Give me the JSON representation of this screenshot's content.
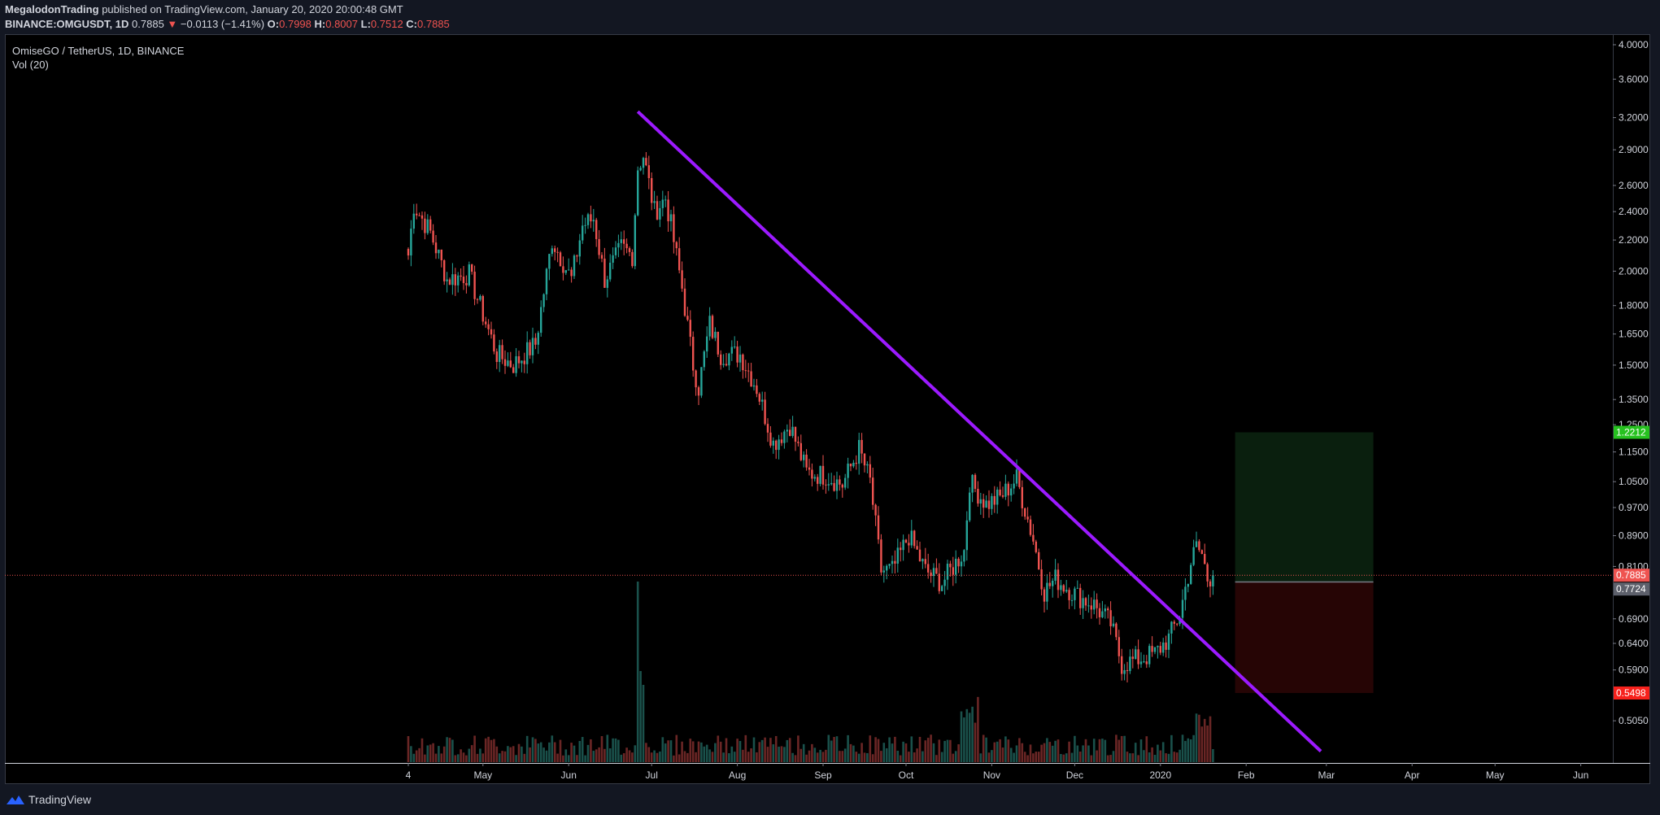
{
  "header": {
    "author": "MegalodonTrading",
    "published_text": "published on TradingView.com, January 20, 2020 20:00:48 GMT",
    "symbol": "BINANCE:OMGUSDT, 1D",
    "last": "0.7885",
    "change_arrow": "▼",
    "change": "−0.0113 (−1.41%)",
    "open_label": "O:",
    "open": "0.7998",
    "high_label": "H:",
    "high": "0.8007",
    "low_label": "L:",
    "low": "0.7512",
    "close_label": "C:",
    "close": "0.7885"
  },
  "legend": {
    "title": "OmiseGO / TetherUS, 1D, BINANCE",
    "indicator": "Vol (20)"
  },
  "footer": {
    "brand": "TradingView",
    "logo_icon": "tradingview-logo-icon"
  },
  "colors": {
    "up": "#26a69a",
    "down": "#ef5350",
    "trendline": "#9c1aff",
    "target": "#089981",
    "stop": "#f23645",
    "entry": "#787b86",
    "target_label": "#26c11f",
    "stop_label": "#f7211c"
  },
  "chart_data": {
    "type": "candlestick",
    "scale": "log",
    "ylim": [
      0.47,
      4.05
    ],
    "y_ticks": [
      "4.0000",
      "3.6000",
      "3.2000",
      "2.9000",
      "2.6000",
      "2.4000",
      "2.2000",
      "2.0000",
      "1.8000",
      "1.6500",
      "1.5000",
      "1.3500",
      "1.2500",
      "1.1500",
      "1.0500",
      "0.9700",
      "0.8900",
      "0.8100",
      "0.6900",
      "0.6400",
      "0.5900",
      "0.5050"
    ],
    "x_ticks": [
      "4",
      "May",
      "Jun",
      "Jul",
      "Aug",
      "Sep",
      "Oct",
      "Nov",
      "Dec",
      "2020",
      "Feb",
      "Mar",
      "Apr",
      "May",
      "Jun"
    ],
    "price_labels": [
      {
        "label": "1.2212",
        "value": 1.2212,
        "kind": "target"
      },
      {
        "label": "0.7885",
        "value": 0.7885,
        "kind": "last"
      },
      {
        "label": "0.7724",
        "value": 0.7724,
        "kind": "entry"
      },
      {
        "label": "0.5498",
        "value": 0.5498,
        "kind": "stop"
      }
    ],
    "last_price": 0.7885,
    "trendline": {
      "start_date": "2019-06-26",
      "start_price": 3.26,
      "end_date": "2020-02-28",
      "end_price": 0.46
    },
    "position": {
      "type": "long",
      "start_date": "2020-01-28",
      "end_date": "2020-03-18",
      "entry": 0.7724,
      "target": 1.2212,
      "stop": 0.5498
    },
    "ohlc_anchors": [
      [
        "2019-04-04",
        2.1
      ],
      [
        "2019-04-06",
        2.45
      ],
      [
        "2019-04-12",
        2.25
      ],
      [
        "2019-04-18",
        1.95
      ],
      [
        "2019-04-26",
        1.98
      ],
      [
        "2019-05-06",
        1.55
      ],
      [
        "2019-05-12",
        1.5
      ],
      [
        "2019-05-20",
        1.6
      ],
      [
        "2019-05-26",
        2.2
      ],
      [
        "2019-06-02",
        1.95
      ],
      [
        "2019-06-06",
        2.3
      ],
      [
        "2019-06-10",
        2.35
      ],
      [
        "2019-06-14",
        1.95
      ],
      [
        "2019-06-20",
        2.15
      ],
      [
        "2019-06-24",
        2.1
      ],
      [
        "2019-06-26",
        2.75
      ],
      [
        "2019-06-28",
        2.85
      ],
      [
        "2019-07-02",
        2.4
      ],
      [
        "2019-07-06",
        2.5
      ],
      [
        "2019-07-08",
        2.3
      ],
      [
        "2019-07-12",
        1.9
      ],
      [
        "2019-07-16",
        1.5
      ],
      [
        "2019-07-18",
        1.4
      ],
      [
        "2019-07-22",
        1.7
      ],
      [
        "2019-07-26",
        1.55
      ],
      [
        "2019-08-02",
        1.55
      ],
      [
        "2019-08-08",
        1.4
      ],
      [
        "2019-08-14",
        1.18
      ],
      [
        "2019-08-20",
        1.25
      ],
      [
        "2019-08-26",
        1.08
      ],
      [
        "2019-09-02",
        1.07
      ],
      [
        "2019-09-08",
        1.04
      ],
      [
        "2019-09-14",
        1.16
      ],
      [
        "2019-09-18",
        1.05
      ],
      [
        "2019-09-22",
        0.8
      ],
      [
        "2019-09-26",
        0.8
      ],
      [
        "2019-10-02",
        0.89
      ],
      [
        "2019-10-08",
        0.8
      ],
      [
        "2019-10-14",
        0.77
      ],
      [
        "2019-10-22",
        0.85
      ],
      [
        "2019-10-24",
        1.05
      ],
      [
        "2019-10-30",
        0.98
      ],
      [
        "2019-11-04",
        1.0
      ],
      [
        "2019-11-10",
        1.06
      ],
      [
        "2019-11-16",
        0.88
      ],
      [
        "2019-11-20",
        0.75
      ],
      [
        "2019-11-24",
        0.78
      ],
      [
        "2019-12-02",
        0.74
      ],
      [
        "2019-12-08",
        0.72
      ],
      [
        "2019-12-14",
        0.68
      ],
      [
        "2019-12-18",
        0.6
      ],
      [
        "2019-12-24",
        0.61
      ],
      [
        "2019-12-30",
        0.62
      ],
      [
        "2020-01-04",
        0.65
      ],
      [
        "2020-01-08",
        0.7
      ],
      [
        "2020-01-12",
        0.82
      ],
      [
        "2020-01-14",
        0.86
      ],
      [
        "2020-01-16",
        0.84
      ],
      [
        "2020-01-18",
        0.78
      ],
      [
        "2020-01-20",
        0.7885
      ]
    ]
  }
}
